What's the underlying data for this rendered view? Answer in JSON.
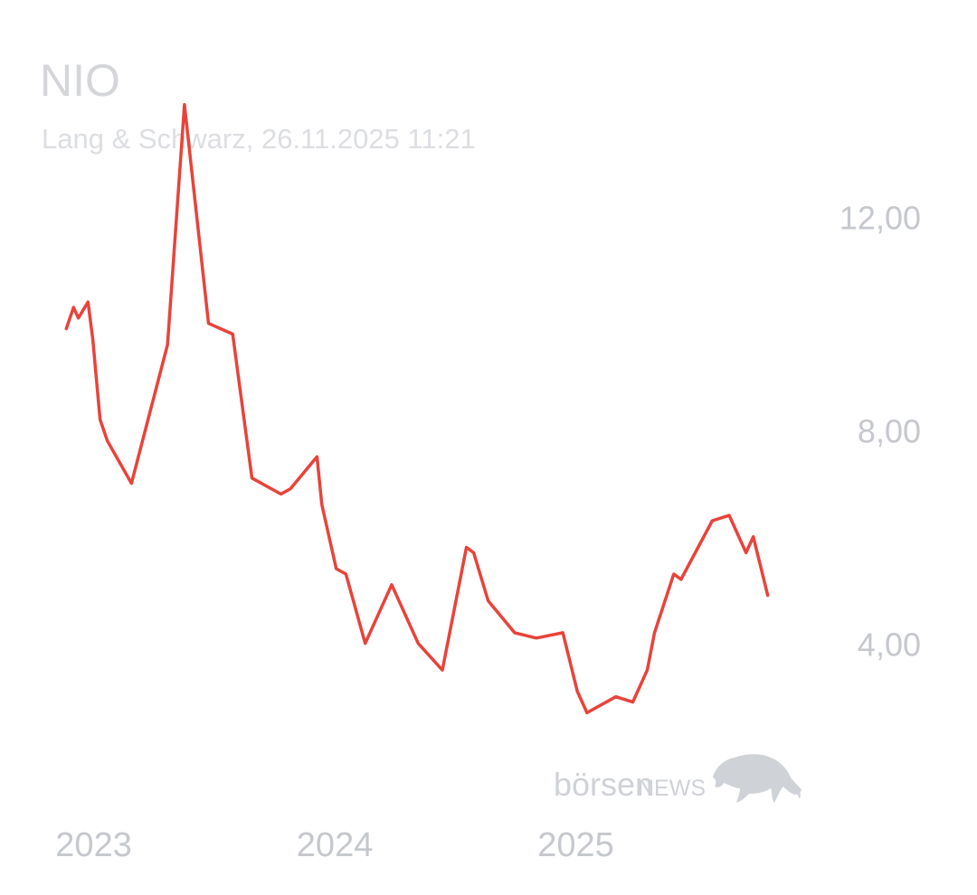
{
  "header": {
    "title": "NIO",
    "subtitle": "Lang & Schwarz, 26.11.2025 11:21"
  },
  "watermark": {
    "text_left": "börsen",
    "text_right": "NEWS",
    "icon": "bull-icon"
  },
  "colors": {
    "line": "#e8433a",
    "muted_text": "#c5c8cd",
    "title_text": "#d4d6da",
    "watermark": "#cfd2d6"
  },
  "chart_data": {
    "type": "line",
    "title": "NIO",
    "subtitle": "Lang & Schwarz, 26.11.2025 11:21",
    "xlabel": "",
    "ylabel": "",
    "x_tick_labels": [
      "2023",
      "2024",
      "2025"
    ],
    "x_tick_values": [
      2023.0,
      2024.0,
      2025.0
    ],
    "y_tick_labels": [
      "12,00",
      "8,00",
      "4,00"
    ],
    "y_tick_values": [
      12,
      8,
      4
    ],
    "xlim": [
      2022.95,
      2026.05
    ],
    "ylim": [
      2.3,
      14.3
    ],
    "grid": false,
    "legend": "none",
    "series": [
      {
        "x": [
          2023.0,
          2023.03,
          2023.05,
          2023.09,
          2023.11,
          2023.14,
          2023.17,
          2023.27,
          2023.42,
          2023.49,
          2023.59,
          2023.69,
          2023.77,
          2023.89,
          2023.93,
          2024.04,
          2024.06,
          2024.12,
          2024.16,
          2024.24,
          2024.35,
          2024.46,
          2024.56,
          2024.66,
          2024.69,
          2024.75,
          2024.86,
          2024.95,
          2025.06,
          2025.12,
          2025.16,
          2025.28,
          2025.35,
          2025.41,
          2025.44,
          2025.52,
          2025.55,
          2025.68,
          2025.75,
          2025.82,
          2025.85,
          2025.91
        ],
        "values": [
          9.9,
          10.3,
          10.1,
          10.4,
          9.7,
          8.2,
          7.8,
          7.0,
          9.6,
          14.1,
          10.0,
          9.8,
          7.1,
          6.8,
          6.9,
          7.5,
          6.6,
          5.4,
          5.3,
          4.0,
          5.1,
          4.0,
          3.5,
          5.8,
          5.7,
          4.8,
          4.2,
          4.1,
          4.2,
          3.1,
          2.7,
          3.0,
          2.9,
          3.5,
          4.2,
          5.3,
          5.2,
          6.3,
          6.4,
          5.7,
          6.0,
          4.9
        ]
      }
    ]
  }
}
